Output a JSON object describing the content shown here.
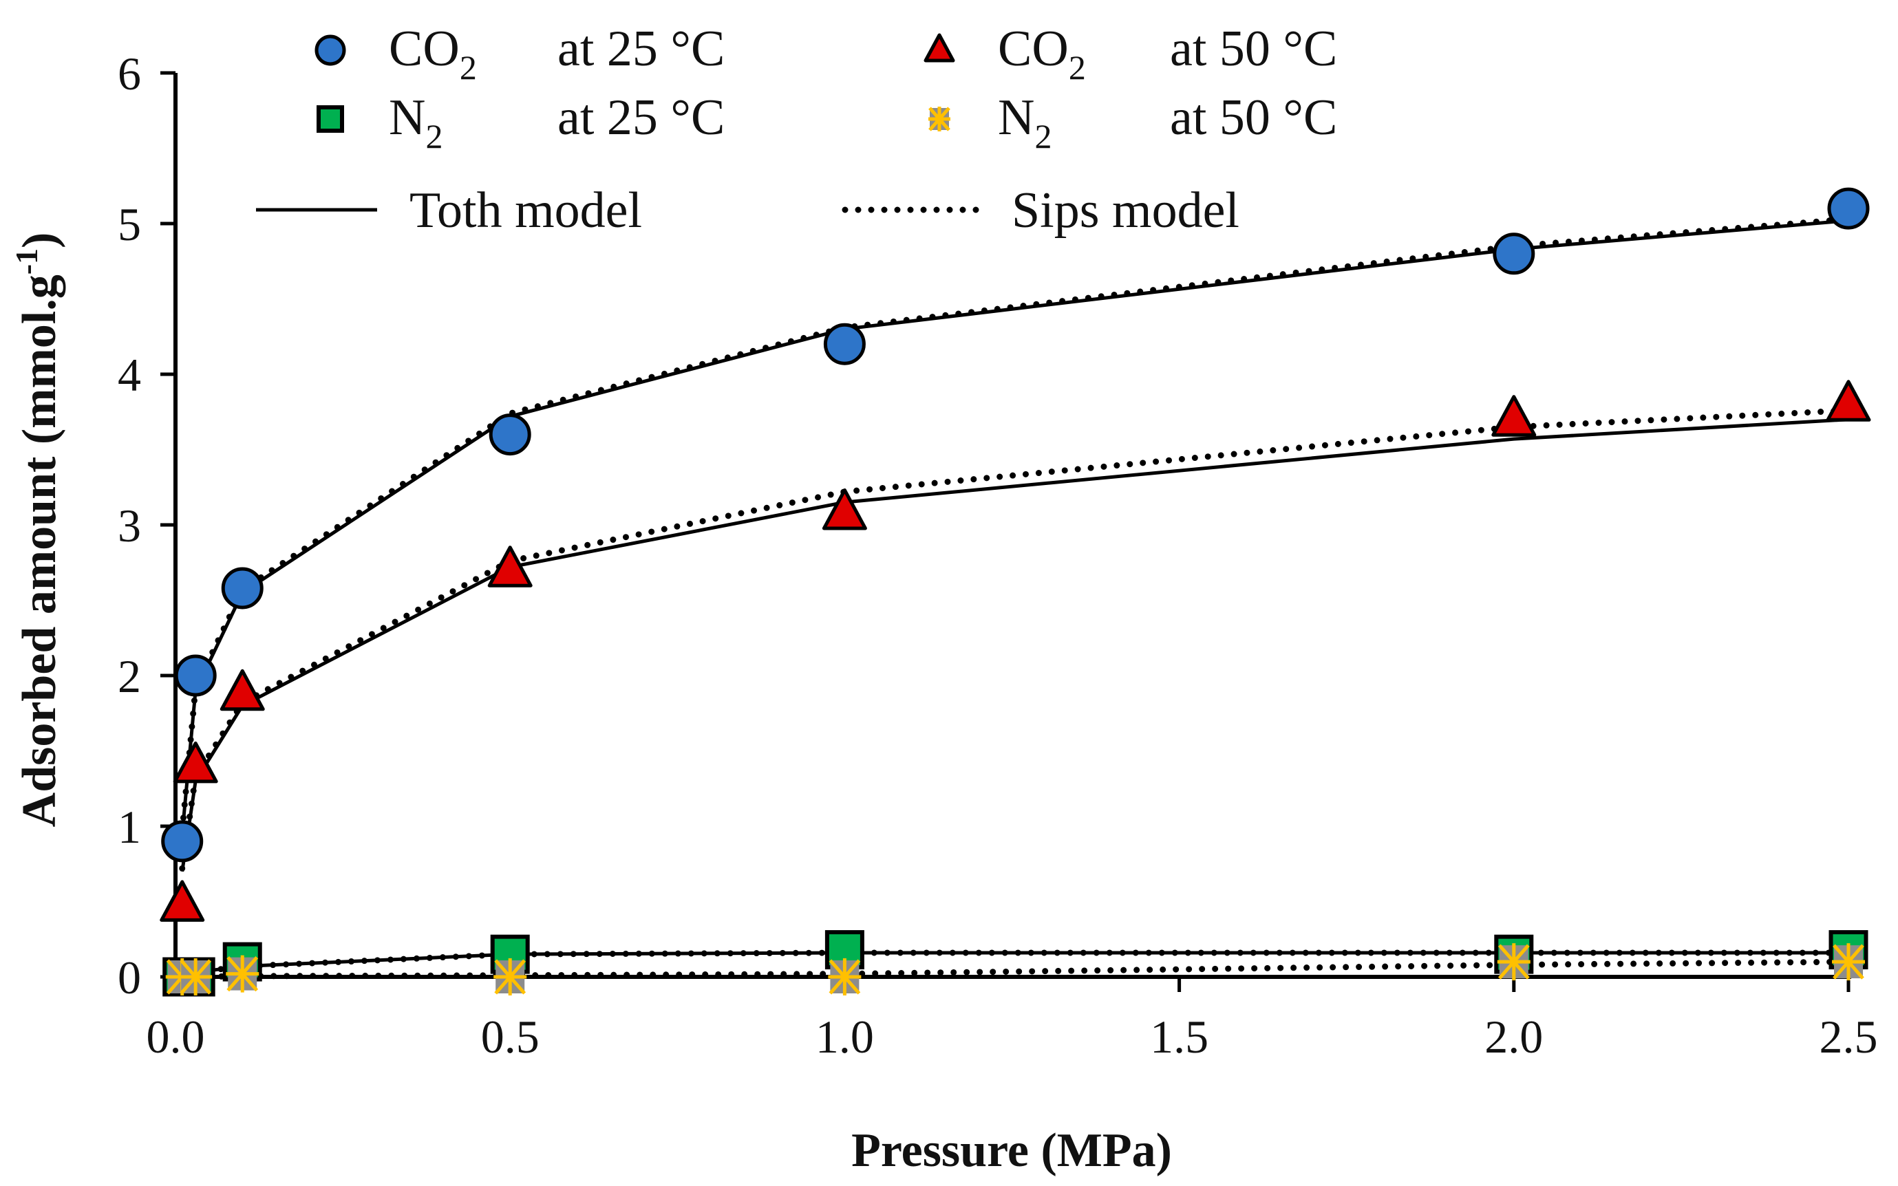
{
  "chart_data": {
    "type": "scatter",
    "title": "",
    "xlabel": "Pressure (MPa)",
    "ylabel": "Adsorbed amount (mmol.g-1)",
    "ylabel_parts": {
      "main": "Adsorbed amount (mmol.g",
      "sup": "-1",
      "close": ")"
    },
    "xlim": [
      0,
      2.5
    ],
    "ylim": [
      0,
      6
    ],
    "xticks": [
      "0.0",
      "0.5",
      "1.0",
      "1.5",
      "2.0",
      "2.5"
    ],
    "yticks": [
      "0",
      "1",
      "2",
      "3",
      "4",
      "5",
      "6"
    ],
    "grid": false,
    "legend_position": "top",
    "x": [
      0.01,
      0.03,
      0.1,
      0.5,
      1.0,
      2.0,
      2.5
    ],
    "series": [
      {
        "name": "CO2 at 25 °C",
        "label_main": "CO",
        "label_sub": "2",
        "label_temp": "at 25 °C",
        "marker": "circle",
        "color": "#2e75c9",
        "values": [
          0.9,
          2.0,
          2.58,
          3.6,
          4.2,
          4.8,
          5.1
        ]
      },
      {
        "name": "CO2 at 50 °C",
        "label_main": "CO",
        "label_sub": "2",
        "label_temp": "at 50 °C",
        "marker": "triangle",
        "color": "#e00000",
        "values": [
          0.48,
          1.4,
          1.88,
          2.7,
          3.08,
          3.7,
          3.8
        ]
      },
      {
        "name": "N2 at 25 °C",
        "label_main": "N",
        "label_sub": "2",
        "label_temp": "at 25 °C",
        "marker": "square",
        "color": "#00b050",
        "values": [
          0.0,
          0.0,
          0.1,
          0.15,
          0.18,
          0.15,
          0.18
        ]
      },
      {
        "name": "N2 at 50 °C",
        "label_main": "N",
        "label_sub": "2",
        "label_temp": "at 50 °C",
        "marker": "star",
        "color": "#ffc000",
        "values": [
          0.0,
          0.0,
          0.02,
          0.0,
          0.0,
          0.1,
          0.1
        ]
      }
    ],
    "models": [
      {
        "name": "Toth model",
        "style": "solid",
        "curves": [
          [
            0.95,
            1.9,
            2.55,
            3.72,
            4.3,
            4.83,
            5.02
          ],
          [
            0.7,
            1.3,
            1.8,
            2.72,
            3.15,
            3.57,
            3.7
          ],
          [
            0.01,
            0.03,
            0.07,
            0.15,
            0.16,
            0.16,
            0.16
          ],
          [
            0.0,
            0.0,
            0.0,
            0.0,
            0.0,
            0.0,
            0.0
          ]
        ]
      },
      {
        "name": "Sips model",
        "style": "dotted",
        "curves": [
          [
            0.97,
            1.92,
            2.57,
            3.74,
            4.31,
            4.85,
            5.03
          ],
          [
            0.72,
            1.33,
            1.82,
            2.76,
            3.22,
            3.65,
            3.76
          ],
          [
            0.01,
            0.03,
            0.07,
            0.15,
            0.16,
            0.16,
            0.16
          ],
          [
            0.0,
            0.0,
            0.005,
            0.01,
            0.02,
            0.08,
            0.1
          ]
        ]
      }
    ]
  }
}
